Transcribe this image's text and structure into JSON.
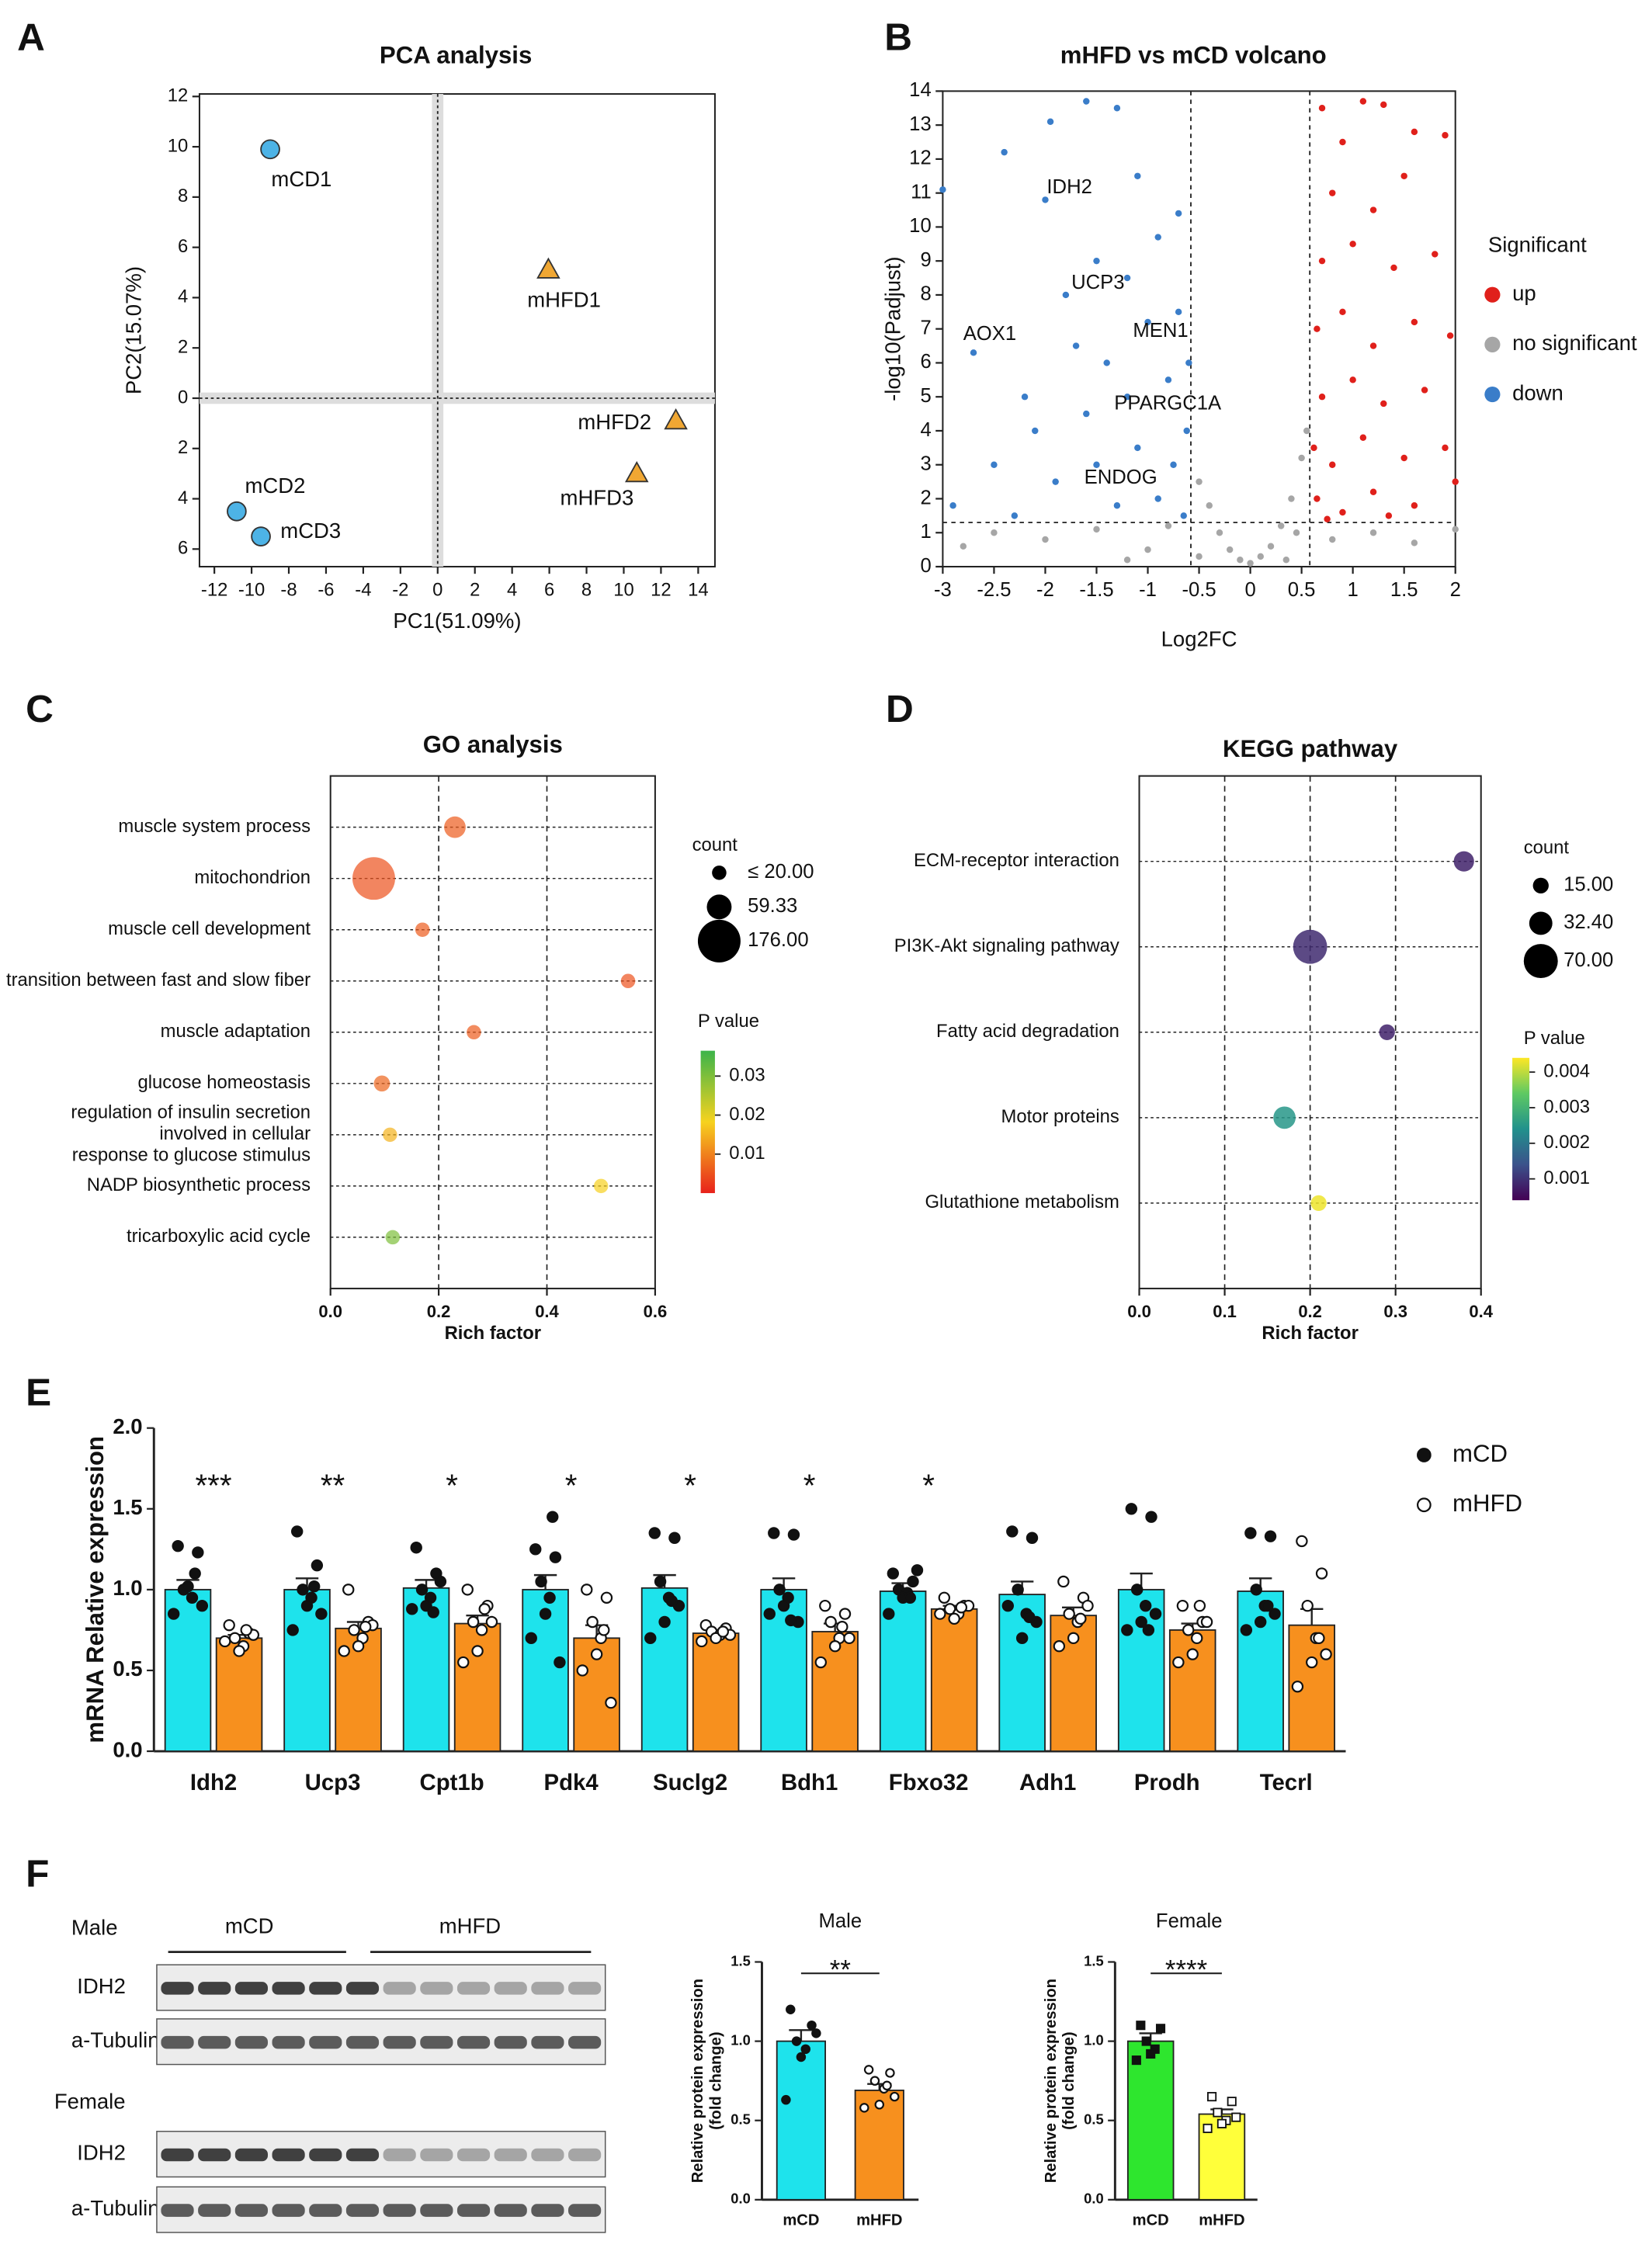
{
  "chart_data": [
    {
      "type": "scatter",
      "panel": "A",
      "title": "PCA analysis",
      "xlabel": "PC1(51.09%)",
      "ylabel": "PC2(15.07%)",
      "xlim": [
        -12.8,
        14.9
      ],
      "ylim": [
        -6.7,
        12.1
      ],
      "xticks": [
        -12,
        -10,
        -8,
        -6,
        -4,
        -2,
        0,
        2,
        4,
        6,
        8,
        10,
        12,
        14
      ],
      "yticks": [
        12,
        10,
        8,
        6,
        4,
        2,
        0,
        {
          "value": -2,
          "label": "2"
        },
        {
          "value": -4,
          "label": "4"
        },
        {
          "value": -6,
          "label": "6"
        }
      ],
      "zero_lines": true,
      "series": [
        {
          "color": "#4db3e6",
          "marker": "circle",
          "labels": [
            "mCD1",
            "mCD2",
            "mCD3"
          ],
          "x": [
            -9,
            -10.8,
            -9.5
          ],
          "y": [
            9.9,
            -4.5,
            -5.5
          ]
        },
        {
          "color": "#f0a733",
          "marker": "triangle",
          "labels": [
            "mHFD1",
            "mHFD2",
            "mHFD3"
          ],
          "x": [
            5.95,
            12.8,
            10.7
          ],
          "y": [
            5.1,
            -0.9,
            -3.0
          ]
        }
      ]
    },
    {
      "type": "scatter",
      "panel": "B",
      "title": "mHFD vs mCD volcano",
      "xlabel": "Log2FC",
      "ylabel": "-log10(Padjust)",
      "xlim": [
        -3,
        2
      ],
      "ylim": [
        0,
        14
      ],
      "xticks": [
        -3,
        -2.5,
        -2,
        -1.5,
        -1,
        -0.5,
        0,
        0.5,
        1,
        1.5,
        2
      ],
      "yticks": [
        0,
        1,
        2,
        3,
        4,
        5,
        6,
        7,
        8,
        9,
        10,
        11,
        12,
        13,
        14
      ],
      "thresholds": {
        "x": [
          -0.58,
          0.58
        ],
        "y": 1.3
      },
      "legend_title": "Significant",
      "annotations": [
        "IDH2",
        "UCP3",
        "AOX1",
        "MEN1",
        "PPARGC1A",
        "ENDOG"
      ],
      "series": [
        {
          "name": "up",
          "color": "#e0201b",
          "marker": "circle",
          "x": [
            0.7,
            1.1,
            1.3,
            0.9,
            1.6,
            1.9,
            0.8,
            1.2,
            1.5,
            0.7,
            1.0,
            1.4,
            1.8,
            0.65,
            0.9,
            1.2,
            1.6,
            1.95,
            0.7,
            1.0,
            1.3,
            1.7,
            0.62,
            0.8,
            1.1,
            1.5,
            1.9,
            0.65,
            0.9,
            1.2,
            1.6,
            2.0,
            0.75,
            1.35
          ],
          "y": [
            13.5,
            13.7,
            13.6,
            12.5,
            12.8,
            12.7,
            11,
            10.5,
            11.5,
            9,
            9.5,
            8.8,
            9.2,
            7,
            7.5,
            6.5,
            7.2,
            6.8,
            5,
            5.5,
            4.8,
            5.2,
            3.5,
            3,
            3.8,
            3.2,
            3.5,
            2,
            1.6,
            2.2,
            1.8,
            2.5,
            1.4,
            1.5
          ]
        },
        {
          "name": "no significant",
          "color": "#a6a6a6",
          "marker": "circle",
          "x": [
            -2.5,
            -2,
            -1.5,
            -1,
            -0.8,
            -0.5,
            -0.4,
            -0.3,
            -0.2,
            -0.1,
            0,
            0.1,
            0.2,
            0.3,
            0.4,
            0.5,
            0.55,
            0.45,
            0.8,
            1.2,
            1.6,
            2,
            -0.5,
            0.35,
            -2.8,
            -1.2
          ],
          "y": [
            1,
            0.8,
            1.1,
            0.5,
            1.2,
            2.5,
            1.8,
            1,
            0.5,
            0.2,
            0.1,
            0.3,
            0.6,
            1.2,
            2,
            3.2,
            4,
            1,
            0.8,
            1,
            0.7,
            1.1,
            0.3,
            0.2,
            0.6,
            0.2
          ]
        },
        {
          "name": "down",
          "color": "#3a7dc9",
          "marker": "circle",
          "x": [
            -3,
            -2.9,
            -2.5,
            -2.2,
            -1.95,
            -1.6,
            -1.3,
            -1.1,
            -0.7,
            -2,
            -1.8,
            -1.5,
            -1.2,
            -0.9,
            -2.4,
            -2.7,
            -1.7,
            -1.4,
            -1.0,
            -0.7,
            -2.1,
            -1.6,
            -1.2,
            -0.8,
            -0.6,
            -1.9,
            -1.5,
            -1.1,
            -0.75,
            -0.62,
            -1.3,
            -0.9,
            -0.65,
            -2.3
          ],
          "y": [
            11.1,
            1.8,
            3,
            5,
            13.1,
            13.7,
            13.5,
            11.5,
            10.4,
            10.8,
            8,
            9,
            8.5,
            9.7,
            12.2,
            6.3,
            6.5,
            6,
            7.2,
            7.5,
            4,
            4.5,
            5,
            5.5,
            6,
            2.5,
            3,
            3.5,
            3,
            4,
            1.8,
            2,
            1.5,
            1.5
          ]
        }
      ]
    },
    {
      "type": "bubble",
      "panel": "C",
      "title": "GO analysis",
      "xlabel": "Rich factor",
      "xlim": [
        0,
        0.6
      ],
      "xticks": [
        {
          "value": 0,
          "label": "0.0"
        },
        0.2,
        0.4,
        0.6
      ],
      "grid": true,
      "categories": [
        "muscle system process",
        "mitochondrion",
        "muscle cell development",
        "transition between fast and slow fiber",
        "muscle adaptation",
        "glucose homeostasis",
        "regulation of insulin secretion\ninvolved in cellular\nresponse to glucose stimulus",
        "NADP biosynthetic process",
        "tricarboxylic acid cycle"
      ],
      "values": [
        0.23,
        0.08,
        0.17,
        0.55,
        0.265,
        0.095,
        0.11,
        0.5,
        0.115
      ],
      "counts": [
        45,
        176,
        20,
        20,
        20,
        25,
        20,
        20,
        20
      ],
      "pvalues": [
        0.006,
        0.005,
        0.006,
        0.005,
        0.006,
        0.007,
        0.015,
        0.018,
        0.03
      ],
      "size_legend": {
        "title": "count",
        "values": [
          {
            "value": 20,
            "label": "≤ 20.00"
          },
          59.33,
          {
            "value": 176,
            "label": "176.00"
          }
        ]
      },
      "color_legend": {
        "title": "P value",
        "clim": [
          0,
          0.0365
        ],
        "ticks": [
          0.01,
          0.02,
          0.03
        ]
      },
      "colorscale": [
        "#e8211b",
        "#f6d21e",
        "#3cb44a"
      ]
    },
    {
      "type": "bubble",
      "panel": "D",
      "title": "KEGG pathway",
      "xlabel": "Rich factor",
      "xlim": [
        0,
        0.4
      ],
      "xticks": [
        {
          "value": 0,
          "label": "0.0"
        },
        0.1,
        0.2,
        0.3,
        0.4
      ],
      "grid": true,
      "categories": [
        "ECM-receptor interaction",
        "PI3K-Akt signaling pathway",
        "Fatty acid degradation",
        "Motor proteins",
        "Glutathione metabolism"
      ],
      "values": [
        0.38,
        0.2,
        0.29,
        0.17,
        0.21
      ],
      "counts": [
        25,
        70,
        15,
        30,
        15
      ],
      "pvalues": [
        0.0008,
        0.0009,
        0.0008,
        0.0025,
        0.0043
      ],
      "size_legend": {
        "title": "count",
        "values": [
          {
            "value": 15,
            "label": "15.00"
          },
          {
            "value": 32.4,
            "label": "32.40"
          },
          {
            "value": 70,
            "label": "70.00"
          }
        ]
      },
      "color_legend": {
        "title": "P value",
        "clim": [
          0.0004,
          0.0044
        ],
        "ticks": [
          0.001,
          0.002,
          0.003,
          0.004
        ]
      },
      "colorscale": [
        "#440154",
        "#3b528b",
        "#21918c",
        "#5ec962",
        "#fde725"
      ]
    },
    {
      "type": "bar",
      "panel": "E",
      "ylabel": "mRNA Relative expression",
      "ylim": [
        0,
        2
      ],
      "yticks": [
        {
          "value": 0,
          "label": "0.0"
        },
        0.5,
        {
          "value": 1,
          "label": "1.0"
        },
        1.5,
        {
          "value": 2,
          "label": "2.0"
        }
      ],
      "categories": [
        "Idh2",
        "Ucp3",
        "Cpt1b",
        "Pdk4",
        "Suclg2",
        "Bdh1",
        "Fbxo32",
        "Adh1",
        "Prodh",
        "Tecrl"
      ],
      "annotations": [
        "***",
        "**",
        "*",
        "*",
        "*",
        "*",
        "*",
        null,
        null,
        null
      ],
      "series": [
        {
          "name": "mCD",
          "color": "#1ee3ec",
          "marker": "filled-circle",
          "values": [
            1.0,
            1.0,
            1.01,
            1.0,
            1.01,
            1.0,
            0.99,
            0.97,
            1.0,
            0.99
          ],
          "errors": [
            0.06,
            0.07,
            0.05,
            0.09,
            0.08,
            0.07,
            0.05,
            0.08,
            0.1,
            0.08
          ],
          "points": [
            [
              1.27,
              1.23,
              1.0,
              0.95,
              1.02,
              0.85,
              0.9,
              1.1
            ],
            [
              1.36,
              1.15,
              1.0,
              0.95,
              0.9,
              0.75,
              0.85,
              1.02
            ],
            [
              1.26,
              1.1,
              1.0,
              0.95,
              0.9,
              0.88,
              1.05,
              0.86
            ],
            [
              1.25,
              1.2,
              1.05,
              0.95,
              0.85,
              0.7,
              0.55,
              1.45
            ],
            [
              1.35,
              1.32,
              1.05,
              0.95,
              0.8,
              0.7,
              0.9,
              0.93
            ],
            [
              1.35,
              1.34,
              1.0,
              0.95,
              0.9,
              0.85,
              0.8,
              0.81
            ],
            [
              1.1,
              1.05,
              1.0,
              0.98,
              0.95,
              0.85,
              1.12,
              0.95
            ],
            [
              1.36,
              1.32,
              1.0,
              0.85,
              0.7,
              0.9,
              0.8,
              0.83
            ],
            [
              1.5,
              1.45,
              1.0,
              0.9,
              0.8,
              0.75,
              0.85,
              0.75
            ],
            [
              1.35,
              1.33,
              1.0,
              0.9,
              0.8,
              0.75,
              0.85,
              0.9
            ]
          ]
        },
        {
          "name": "mHFD",
          "color": "#f7901e",
          "marker": "open-circle",
          "values": [
            0.7,
            0.76,
            0.79,
            0.7,
            0.73,
            0.74,
            0.88,
            0.84,
            0.75,
            0.78
          ],
          "errors": [
            0.02,
            0.04,
            0.05,
            0.08,
            0.02,
            0.05,
            0.02,
            0.05,
            0.04,
            0.1
          ],
          "points": [
            [
              0.78,
              0.73,
              0.7,
              0.65,
              0.62,
              0.68,
              0.72,
              0.75
            ],
            [
              1.0,
              0.8,
              0.75,
              0.7,
              0.65,
              0.62,
              0.78,
              0.77
            ],
            [
              1.0,
              0.9,
              0.8,
              0.75,
              0.62,
              0.55,
              0.8,
              0.88
            ],
            [
              1.0,
              0.95,
              0.8,
              0.7,
              0.6,
              0.5,
              0.3,
              0.75
            ],
            [
              0.78,
              0.76,
              0.74,
              0.72,
              0.7,
              0.68,
              0.72,
              0.74
            ],
            [
              0.9,
              0.85,
              0.8,
              0.7,
              0.65,
              0.55,
              0.7,
              0.77
            ],
            [
              0.95,
              0.9,
              0.88,
              0.85,
              0.82,
              0.85,
              0.9,
              0.89
            ],
            [
              1.05,
              0.95,
              0.85,
              0.8,
              0.7,
              0.65,
              0.9,
              0.82
            ],
            [
              0.9,
              0.8,
              0.75,
              0.7,
              0.6,
              0.55,
              0.8,
              0.9
            ],
            [
              1.3,
              1.1,
              0.9,
              0.7,
              0.55,
              0.4,
              0.6,
              0.7
            ]
          ]
        }
      ]
    },
    {
      "type": "bar",
      "panel": "F",
      "title": "Male",
      "ylabel": "Relative protein expression\n(fold change)",
      "ylim": [
        0,
        1.5
      ],
      "yticks": [
        {
          "value": 0,
          "label": "0.0"
        },
        0.5,
        {
          "value": 1,
          "label": "1.0"
        },
        1.5
      ],
      "categories": [
        "mCD",
        "mHFD"
      ],
      "values": [
        1.0,
        0.69
      ],
      "errors": [
        0.07,
        0.04
      ],
      "points": [
        [
          1.2,
          1.1,
          1.0,
          0.95,
          0.9,
          0.63,
          1.05
        ],
        [
          0.82,
          0.8,
          0.75,
          0.7,
          0.6,
          0.58,
          0.65,
          0.72
        ]
      ],
      "colors": [
        "#1ee3ec",
        "#f7901e"
      ],
      "markers": [
        "filled-circle",
        "open-circle"
      ],
      "significance": "**"
    },
    {
      "type": "bar",
      "title": "Female",
      "ylabel": "Relative protein expression\n(fold change)",
      "ylim": [
        0,
        1.5
      ],
      "yticks": [
        {
          "value": 0,
          "label": "0.0"
        },
        0.5,
        {
          "value": 1,
          "label": "1.0"
        },
        1.5
      ],
      "categories": [
        "mCD",
        "mHFD"
      ],
      "values": [
        1.0,
        0.54
      ],
      "errors": [
        0.05,
        0.03
      ],
      "points": [
        [
          1.1,
          1.08,
          1.0,
          0.95,
          0.92,
          0.88
        ],
        [
          0.65,
          0.62,
          0.55,
          0.5,
          0.48,
          0.45,
          0.52
        ]
      ],
      "colors": [
        "#2ee62e",
        "#ffff3a"
      ],
      "markers": [
        "filled-square",
        "open-square"
      ],
      "significance": "****"
    }
  ],
  "blot": {
    "groups": [
      "mCD",
      "mHFD"
    ],
    "sections": [
      {
        "name": "Male",
        "rows": [
          "IDH2",
          "a-Tubulin"
        ]
      },
      {
        "name": "Female",
        "rows": [
          "IDH2",
          "a-Tubulin"
        ]
      }
    ]
  }
}
